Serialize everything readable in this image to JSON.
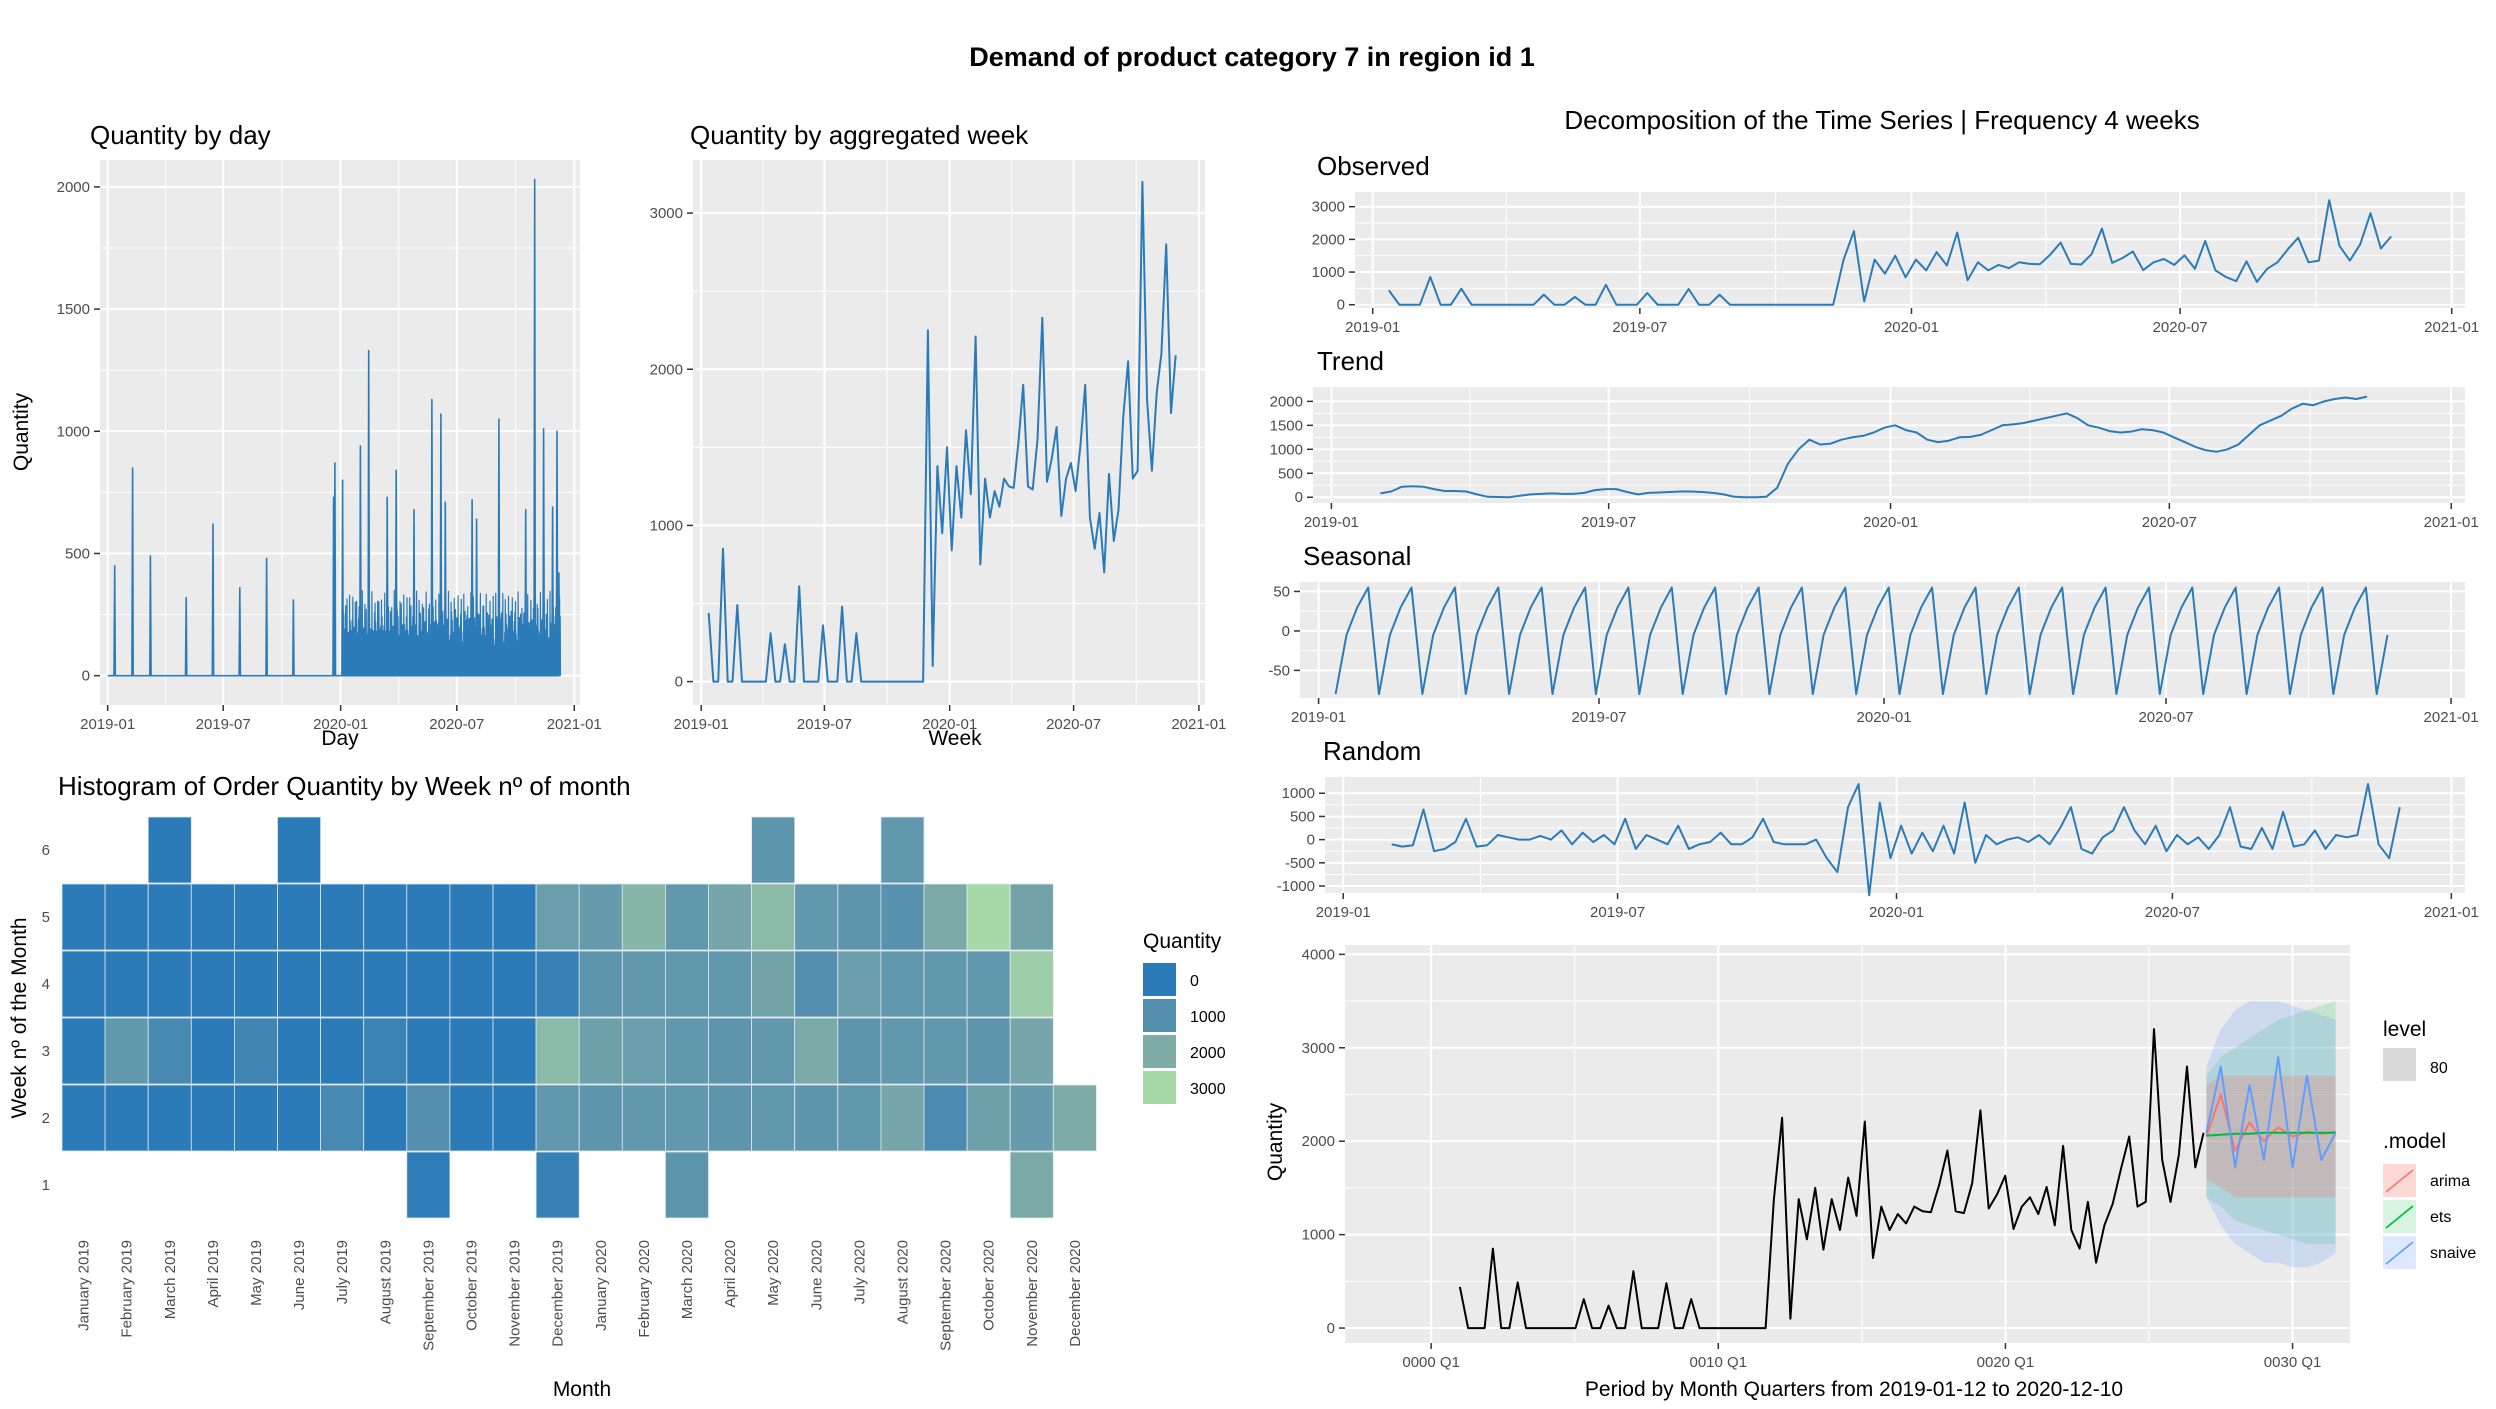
{
  "main_title": "Demand of product category 7 in region id 1",
  "panels": {
    "daily": {
      "title": "Quantity by day",
      "xlabel": "Day",
      "ylabel": "Quantity"
    },
    "weekly": {
      "title": "Quantity by aggregated week",
      "xlabel": "Week"
    },
    "heatmap": {
      "title": "Histogram of Order Quantity by Week nº of month",
      "xlabel": "Month",
      "ylabel": "Week nº of the Month",
      "legend_title": "Quantity"
    },
    "decomp": {
      "title": "Decomposition of the Time Series | Frequency 4 weeks",
      "strips": [
        "Observed",
        "Trend",
        "Seasonal",
        "Random"
      ]
    },
    "forecast": {
      "xlabel": "Period by Month Quarters from 2019-01-12 to 2020-12-10",
      "ylabel": "Quantity",
      "legend_level_title": "level",
      "legend_level_value": "80",
      "legend_model_title": ".model"
    }
  },
  "colors": {
    "line": "#2b7bb9",
    "panel_bg": "#ebebeb",
    "grid": "#ffffff",
    "arima": "#f8766d",
    "ets": "#00ba38",
    "snaive": "#619cff"
  },
  "chart_data": [
    {
      "id": "daily",
      "type": "line",
      "title": "Quantity by day",
      "xlabel": "Day",
      "ylabel": "Quantity",
      "xlim": [
        "2018-12-20",
        "2021-01-10"
      ],
      "ylim": [
        -120,
        2110
      ],
      "x_ticks": [
        "2019-01",
        "2019-07",
        "2020-01",
        "2020-07",
        "2021-01"
      ],
      "y_ticks": [
        0,
        500,
        1000,
        1500,
        2000
      ],
      "spikes": [
        [
          "2019-01-12",
          450
        ],
        [
          "2019-02-09",
          850
        ],
        [
          "2019-03-09",
          490
        ],
        [
          "2019-05-04",
          320
        ],
        [
          "2019-06-01",
          0
        ],
        [
          "2019-06-15",
          620
        ],
        [
          "2019-07-27",
          360
        ],
        [
          "2019-09-07",
          480
        ],
        [
          "2019-10-19",
          310
        ],
        [
          "2019-12-21",
          730
        ],
        [
          "2019-12-23",
          870
        ],
        [
          "2020-01-04",
          800
        ],
        [
          "2020-02-01",
          940
        ],
        [
          "2020-02-14",
          1330
        ],
        [
          "2020-03-14",
          730
        ],
        [
          "2020-03-28",
          840
        ],
        [
          "2020-04-25",
          680
        ],
        [
          "2020-05-23",
          1130
        ],
        [
          "2020-06-06",
          1070
        ],
        [
          "2020-06-13",
          710
        ],
        [
          "2020-07-25",
          720
        ],
        [
          "2020-08-01",
          640
        ],
        [
          "2020-09-05",
          1050
        ],
        [
          "2020-10-17",
          680
        ],
        [
          "2020-10-31",
          2030
        ],
        [
          "2020-11-14",
          1010
        ],
        [
          "2020-11-28",
          690
        ],
        [
          "2020-12-05",
          1000
        ],
        [
          "2020-12-08",
          420
        ]
      ]
    },
    {
      "id": "weekly",
      "type": "line",
      "title": "Quantity by aggregated week",
      "xlabel": "Week",
      "ylabel": "",
      "xlim": [
        "2018-12-20",
        "2021-01-10"
      ],
      "ylim": [
        -150,
        3340
      ],
      "x_ticks": [
        "2019-01",
        "2019-07",
        "2020-01",
        "2020-07",
        "2021-01"
      ],
      "y_ticks": [
        0,
        1000,
        2000,
        3000
      ],
      "start": "2019-01-12",
      "step_days": 7,
      "values": [
        440,
        0,
        0,
        850,
        0,
        0,
        490,
        0,
        0,
        0,
        0,
        0,
        0,
        310,
        0,
        0,
        240,
        0,
        0,
        610,
        0,
        0,
        0,
        0,
        360,
        0,
        0,
        0,
        480,
        0,
        0,
        310,
        0,
        0,
        0,
        0,
        0,
        0,
        0,
        0,
        0,
        0,
        0,
        0,
        0,
        0,
        2250,
        100,
        1380,
        950,
        1500,
        840,
        1380,
        1050,
        1610,
        1200,
        2210,
        750,
        1300,
        1050,
        1220,
        1120,
        1300,
        1250,
        1240,
        1530,
        1900,
        1250,
        1230,
        1550,
        2330,
        1280,
        1430,
        1630,
        1060,
        1300,
        1400,
        1220,
        1510,
        1900,
        1050,
        850,
        1080,
        700,
        1330,
        900,
        1100,
        1700,
        2050,
        1300,
        1350,
        3200,
        1800,
        1350,
        1850,
        2100,
        2800,
        1720,
        2090
      ]
    },
    {
      "id": "heatmap",
      "type": "heatmap",
      "title": "Histogram of Order Quantity by Week nº of month",
      "xlabel": "Month",
      "ylabel": "Week nº of the Month",
      "months": [
        "January 2019",
        "February 2019",
        "March 2019",
        "April 2019",
        "May 2019",
        "June 2019",
        "July 2019",
        "August 2019",
        "September 2019",
        "October 2019",
        "November 2019",
        "December 2019",
        "January 2020",
        "February 2020",
        "March 2020",
        "April 2020",
        "May 2020",
        "June 2020",
        "July 2020",
        "August 2020",
        "September 2020",
        "October 2020",
        "November 2020",
        "December 2020"
      ],
      "weeks": [
        1,
        2,
        3,
        4,
        5,
        6
      ],
      "legend_title": "Quantity",
      "legend_values": [
        0,
        1000,
        2000,
        3000
      ],
      "values": {
        "1": [
          null,
          null,
          null,
          null,
          null,
          null,
          null,
          null,
          100,
          null,
          null,
          300,
          null,
          null,
          1200,
          null,
          null,
          null,
          null,
          null,
          null,
          null,
          1900,
          null
        ],
        "2": [
          0,
          0,
          0,
          0,
          0,
          0,
          700,
          0,
          1000,
          0,
          0,
          1300,
          1200,
          1300,
          1300,
          1200,
          1300,
          1200,
          1300,
          1800,
          800,
          1600,
          1400,
          2000
        ],
        "3": [
          0,
          1300,
          700,
          0,
          500,
          0,
          0,
          400,
          0,
          0,
          0,
          2300,
          1600,
          1500,
          1300,
          1200,
          1300,
          1900,
          1200,
          1300,
          1300,
          1200,
          1800,
          null
        ],
        "4": [
          0,
          0,
          0,
          0,
          0,
          0,
          0,
          0,
          0,
          0,
          0,
          300,
          1200,
          1300,
          1300,
          1300,
          1700,
          1000,
          1500,
          1300,
          1300,
          1300,
          2700,
          null
        ],
        "5": [
          0,
          0,
          0,
          0,
          0,
          0,
          0,
          0,
          0,
          0,
          0,
          1500,
          1400,
          2200,
          1300,
          1800,
          2300,
          1300,
          1200,
          1100,
          1900,
          3000,
          1700,
          null
        ],
        "6": [
          null,
          null,
          0,
          null,
          null,
          0,
          null,
          null,
          null,
          null,
          null,
          null,
          null,
          null,
          null,
          null,
          1200,
          null,
          null,
          1300,
          null,
          null,
          null,
          null
        ]
      }
    },
    {
      "id": "decomposition",
      "type": "line",
      "title": "Decomposition of the Time Series | Frequency 4 weeks",
      "xlim": [
        "2018-12-20",
        "2021-01-10"
      ],
      "x_ticks": [
        "2019-01",
        "2019-07",
        "2020-01",
        "2020-07",
        "2021-01"
      ],
      "start": "2019-01-12",
      "step_days": 7,
      "series": [
        {
          "name": "Observed",
          "ylim": [
            -100,
            3450
          ],
          "y_ticks": [
            0,
            1000,
            2000,
            3000
          ],
          "values": [
            440,
            0,
            0,
            0,
            850,
            0,
            0,
            490,
            0,
            0,
            0,
            0,
            0,
            0,
            0,
            310,
            0,
            0,
            240,
            0,
            0,
            610,
            0,
            0,
            0,
            360,
            0,
            0,
            0,
            480,
            0,
            0,
            310,
            0,
            0,
            0,
            0,
            0,
            0,
            0,
            0,
            0,
            0,
            0,
            1380,
            2250,
            100,
            1380,
            950,
            1500,
            840,
            1380,
            1050,
            1610,
            1200,
            2210,
            750,
            1300,
            1050,
            1220,
            1120,
            1300,
            1250,
            1240,
            1530,
            1900,
            1250,
            1230,
            1550,
            2330,
            1280,
            1430,
            1630,
            1060,
            1300,
            1400,
            1220,
            1510,
            1100,
            1950,
            1050,
            850,
            720,
            1330,
            700,
            1100,
            1300,
            1700,
            2050,
            1300,
            1350,
            3200,
            1800,
            1350,
            1850,
            2800,
            1720,
            2090
          ]
        },
        {
          "name": "Trend",
          "ylim": [
            -120,
            2300
          ],
          "y_ticks": [
            0,
            500,
            1000,
            1500,
            2000
          ],
          "start": "2019-02-02",
          "values": [
            80,
            120,
            220,
            230,
            220,
            170,
            130,
            130,
            120,
            60,
            10,
            5,
            0,
            30,
            60,
            70,
            80,
            70,
            70,
            90,
            150,
            170,
            170,
            110,
            60,
            90,
            100,
            110,
            120,
            120,
            110,
            90,
            60,
            10,
            0,
            0,
            10,
            200,
            700,
            1000,
            1200,
            1100,
            1120,
            1200,
            1250,
            1280,
            1350,
            1450,
            1500,
            1400,
            1350,
            1200,
            1150,
            1180,
            1250,
            1260,
            1300,
            1400,
            1500,
            1520,
            1550,
            1600,
            1650,
            1700,
            1750,
            1650,
            1500,
            1450,
            1380,
            1350,
            1370,
            1420,
            1400,
            1350,
            1250,
            1150,
            1050,
            980,
            950,
            1000,
            1100,
            1300,
            1500,
            1600,
            1700,
            1850,
            1950,
            1920,
            2000,
            2050,
            2080,
            2050,
            2100
          ]
        },
        {
          "name": "Seasonal",
          "ylim": [
            -85,
            62
          ],
          "y_ticks": [
            -50,
            0,
            50
          ],
          "pattern": [
            -80,
            -5,
            30,
            55
          ]
        },
        {
          "name": "Random",
          "ylim": [
            -1150,
            1350
          ],
          "y_ticks": [
            -1000,
            -500,
            0,
            500,
            1000
          ],
          "start": "2019-02-02",
          "values": [
            -100,
            -150,
            -120,
            650,
            -250,
            -200,
            -50,
            450,
            -150,
            -120,
            100,
            50,
            0,
            0,
            80,
            0,
            200,
            -100,
            150,
            -50,
            100,
            -100,
            450,
            -200,
            100,
            0,
            -100,
            300,
            -200,
            -100,
            -50,
            150,
            -100,
            -100,
            50,
            450,
            -50,
            -100,
            -100,
            -100,
            0,
            -400,
            -700,
            700,
            1200,
            -1200,
            800,
            -400,
            300,
            -300,
            150,
            -250,
            300,
            -300,
            800,
            -500,
            100,
            -100,
            0,
            50,
            -50,
            100,
            -100,
            250,
            700,
            -200,
            -300,
            50,
            200,
            700,
            200,
            -100,
            300,
            -250,
            100,
            -100,
            50,
            -200,
            100,
            700,
            -150,
            -200,
            250,
            -200,
            600,
            -150,
            -100,
            200,
            -200,
            100,
            50,
            100,
            1200,
            -100,
            -400,
            700
          ]
        }
      ]
    },
    {
      "id": "forecast",
      "type": "line",
      "xlabel": "Period by Month Quarters from 2019-01-12 to 2020-12-10",
      "ylabel": "Quantity",
      "xlim": [
        -3,
        32
      ],
      "ylim": [
        -160,
        4100
      ],
      "x_ticks": [
        {
          "v": 0,
          "label": "0000 Q1"
        },
        {
          "v": 10,
          "label": "0010 Q1"
        },
        {
          "v": 20,
          "label": "0020 Q1"
        },
        {
          "v": 30,
          "label": "0030 Q1"
        }
      ],
      "y_ticks": [
        0,
        1000,
        2000,
        3000,
        4000
      ],
      "history": {
        "x_start": 1,
        "x_end": 26.9,
        "values": [
          440,
          0,
          0,
          0,
          850,
          0,
          0,
          490,
          0,
          0,
          0,
          0,
          0,
          0,
          0,
          310,
          0,
          0,
          240,
          0,
          0,
          610,
          0,
          0,
          0,
          480,
          0,
          0,
          310,
          0,
          0,
          0,
          0,
          0,
          0,
          0,
          0,
          0,
          1380,
          2250,
          100,
          1380,
          950,
          1500,
          840,
          1380,
          1050,
          1610,
          1200,
          2210,
          750,
          1300,
          1050,
          1220,
          1120,
          1300,
          1250,
          1240,
          1530,
          1900,
          1250,
          1230,
          1550,
          2330,
          1280,
          1430,
          1630,
          1060,
          1300,
          1400,
          1220,
          1510,
          1100,
          1950,
          1050,
          850,
          1350,
          700,
          1100,
          1330,
          1700,
          2050,
          1300,
          1350,
          3200,
          1800,
          1350,
          1850,
          2800,
          1720,
          2090
        ]
      },
      "forecast_x": [
        27,
        27.5,
        28,
        28.5,
        29,
        29.5,
        30,
        30.5,
        31,
        31.5
      ],
      "series": [
        {
          "name": "arima",
          "values": [
            2050,
            2500,
            1900,
            2200,
            2000,
            2150,
            2050,
            2100,
            2080,
            2100
          ],
          "lo80": [
            1600,
            1500,
            1400,
            1400,
            1400,
            1400,
            1400,
            1400,
            1400,
            1400
          ],
          "hi80": [
            2600,
            2700,
            2700,
            2700,
            2700,
            2700,
            2700,
            2700,
            2700,
            2700
          ]
        },
        {
          "name": "ets",
          "values": [
            2060,
            2070,
            2080,
            2080,
            2090,
            2090,
            2090,
            2090,
            2090,
            2090
          ],
          "lo80": [
            1400,
            1300,
            1150,
            1100,
            1050,
            1000,
            950,
            900,
            900,
            900
          ],
          "hi80": [
            2700,
            2900,
            3000,
            3100,
            3200,
            3300,
            3350,
            3400,
            3450,
            3500
          ]
        },
        {
          "name": "snaive",
          "values": [
            2090,
            2800,
            1720,
            2600,
            1800,
            2900,
            1720,
            2700,
            1800,
            2090
          ],
          "lo80": [
            1400,
            1100,
            900,
            800,
            700,
            700,
            650,
            650,
            700,
            800
          ],
          "hi80": [
            2800,
            3200,
            3400,
            3500,
            3500,
            3500,
            3450,
            3400,
            3350,
            3300
          ]
        }
      ]
    }
  ]
}
